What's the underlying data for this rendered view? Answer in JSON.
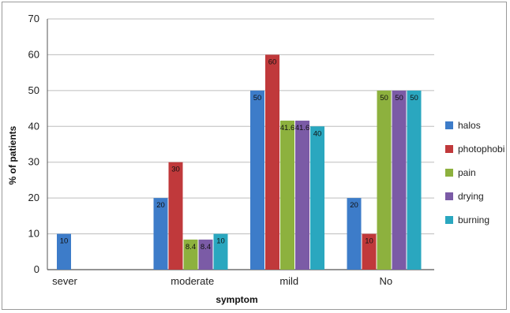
{
  "chart_data": {
    "type": "bar",
    "title": "",
    "xlabel": "symptom",
    "ylabel": "% of patients",
    "ylim": [
      0,
      70
    ],
    "yticks": [
      0,
      10,
      20,
      30,
      40,
      50,
      60,
      70
    ],
    "grid": true,
    "legend_position": "right",
    "categories": [
      "sever",
      "moderate",
      "mild",
      "No"
    ],
    "series": [
      {
        "name": "halos",
        "color": "#3d7cc9",
        "values": [
          10,
          20,
          50,
          20
        ],
        "labels": [
          "10",
          "20",
          "50",
          "20"
        ]
      },
      {
        "name": "photophobi",
        "color": "#c0393b",
        "values": [
          0,
          30,
          60,
          10
        ],
        "labels": [
          "",
          "30",
          "60",
          "10"
        ]
      },
      {
        "name": "pain",
        "color": "#8db13e",
        "values": [
          0,
          8.4,
          41.6,
          50
        ],
        "labels": [
          "",
          "8.4",
          "41.6",
          "50"
        ]
      },
      {
        "name": "drying",
        "color": "#7b5ba6",
        "values": [
          0,
          8.4,
          41.6,
          50
        ],
        "labels": [
          "",
          "8.4",
          "41.6",
          "50"
        ]
      },
      {
        "name": "burning",
        "color": "#2aa7bf",
        "values": [
          0,
          10,
          40,
          50
        ],
        "labels": [
          "",
          "10",
          "40",
          "50"
        ]
      }
    ]
  }
}
